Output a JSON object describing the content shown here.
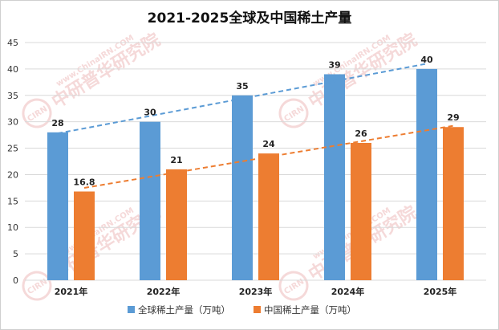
{
  "chart_data": {
    "type": "bar",
    "title": "2021-2025全球及中国稀土产量",
    "categories": [
      "2021年",
      "2022年",
      "2023年",
      "2024年",
      "2025年"
    ],
    "series": [
      {
        "name": "全球稀土产量（万吨）",
        "values": [
          28,
          30,
          35,
          39,
          40
        ],
        "color": "#5b9bd5",
        "labels": [
          "28",
          "30",
          "35",
          "39",
          "40"
        ]
      },
      {
        "name": "中国稀土产量（万吨）",
        "values": [
          16.8,
          21,
          24,
          26,
          29
        ],
        "color": "#ed7d31",
        "labels": [
          "16.8",
          "21",
          "24",
          "26",
          "29"
        ]
      }
    ],
    "trendlines": [
      {
        "series": "全球稀土产量（万吨）",
        "style": "dashed",
        "color": "#5b9bd5"
      },
      {
        "series": "中国稀土产量（万吨）",
        "style": "dashed",
        "color": "#ed7d31"
      }
    ],
    "ylim": [
      0,
      45
    ],
    "yticks": [
      "0",
      "5",
      "10",
      "15",
      "20",
      "25",
      "30",
      "35",
      "40",
      "45"
    ],
    "xlabel": "",
    "ylabel": "",
    "grid": true,
    "legend_position": "bottom"
  },
  "watermark": {
    "logo_text": "CIRN",
    "cn_text": "中研普华研究院",
    "url_text": "www.ChinaIRN.COM",
    "color": "#f4d3d3"
  }
}
